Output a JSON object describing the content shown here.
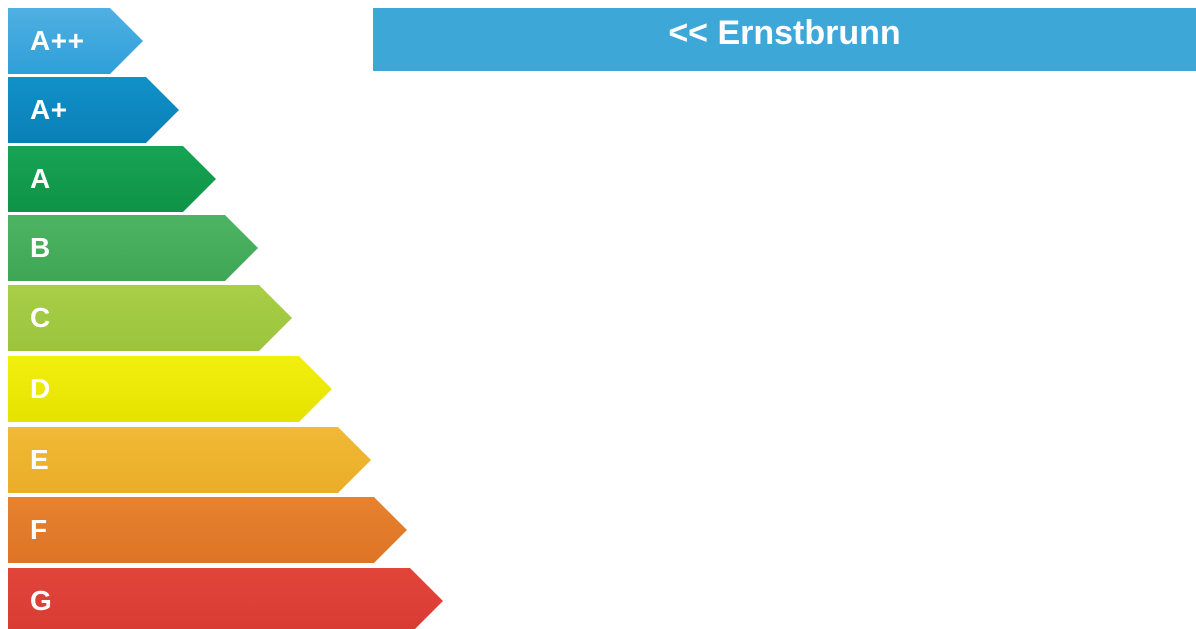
{
  "energy_scale": {
    "ratings": [
      {
        "label": "A++",
        "color": "#3ea8de"
      },
      {
        "label": "A+",
        "color": "#0b86bf"
      },
      {
        "label": "A",
        "color": "#12994c"
      },
      {
        "label": "B",
        "color": "#44ac5c"
      },
      {
        "label": "C",
        "color": "#a0c942"
      },
      {
        "label": "D",
        "color": "#eae806"
      },
      {
        "label": "E",
        "color": "#eeb32e"
      },
      {
        "label": "F",
        "color": "#e27a2a"
      },
      {
        "label": "G",
        "color": "#dc4036"
      }
    ]
  },
  "header": {
    "link_text": "<< Ernstbrunn",
    "background_color": "#3da7d8"
  }
}
